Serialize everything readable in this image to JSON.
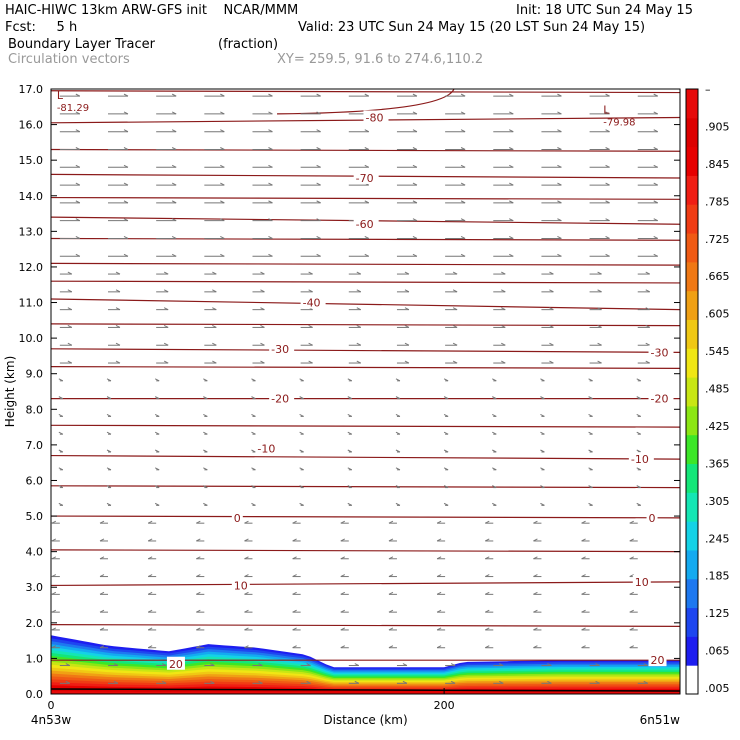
{
  "header": {
    "model_line": "HAIC-HIWC 13km ARW-GFS init    NCAR/MMM",
    "init_line": "Init: 18 UTC Sun 24 May 15",
    "fcst_line": "Fcst:     5 h",
    "valid_line": "Valid: 23 UTC Sun 24 May 15 (20 LST Sun 24 May 15)",
    "field_name": "Boundary Layer Tracer",
    "field_units": "(fraction)",
    "vector_name": "Circulation vectors",
    "xy_text": "XY= 259.5, 91.6 to 274.6,110.2"
  },
  "colors": {
    "contour": "#8b1a1a",
    "vector": "#777777",
    "colorbar": [
      "#ffffff",
      "#1e1ef0",
      "#1e46f0",
      "#1e78f0",
      "#14aaf0",
      "#14d2e6",
      "#14e6b4",
      "#14e678",
      "#3ce628",
      "#8ce614",
      "#c8e614",
      "#f0e614",
      "#f0c814",
      "#f0a014",
      "#f07814",
      "#f05a14",
      "#f03c14",
      "#f01e14",
      "#e60000",
      "#dc0000",
      "#e60a0a"
    ]
  },
  "chart_data": {
    "type": "cross-section",
    "xlabel": "Distance (km)",
    "ylabel": "Height (km)",
    "xlim": [
      0,
      320
    ],
    "ylim": [
      0,
      17
    ],
    "x_ticks": [
      "0",
      "200"
    ],
    "x_end_labels": [
      "4n53w",
      "6n51w"
    ],
    "y_ticks": [
      "0.0",
      "1.0",
      "2.0",
      "3.0",
      "4.0",
      "5.0",
      "6.0",
      "7.0",
      "8.0",
      "9.0",
      "10.0",
      "11.0",
      "12.0",
      "13.0",
      "14.0",
      "15.0",
      "16.0",
      "17.0"
    ],
    "colorbar_labels": [
      ".005",
      ".065",
      ".125",
      ".185",
      ".245",
      ".305",
      ".365",
      ".425",
      ".485",
      ".545",
      ".605",
      ".665",
      ".725",
      ".785",
      ".845",
      ".905",
      "–"
    ],
    "contour_labels": [
      {
        "text": "-80",
        "x": 160,
        "y": 16.2
      },
      {
        "text": "-70",
        "x": 155,
        "y": 14.5
      },
      {
        "text": "-60",
        "x": 155,
        "y": 13.2
      },
      {
        "text": "-40",
        "x": 128,
        "y": 11.0
      },
      {
        "text": "-30",
        "x": 112,
        "y": 9.7
      },
      {
        "text": "-30",
        "x": 305,
        "y": 9.6
      },
      {
        "text": "-20",
        "x": 112,
        "y": 8.3
      },
      {
        "text": "-20",
        "x": 305,
        "y": 8.3
      },
      {
        "text": "-10",
        "x": 105,
        "y": 6.9
      },
      {
        "text": "-10",
        "x": 295,
        "y": 6.6
      },
      {
        "text": "0",
        "x": 93,
        "y": 4.95
      },
      {
        "text": "0",
        "x": 304,
        "y": 4.95
      },
      {
        "text": "10",
        "x": 93,
        "y": 3.05
      },
      {
        "text": "10",
        "x": 297,
        "y": 3.15
      },
      {
        "text": "20",
        "x": 60,
        "y": 0.85
      },
      {
        "text": "20",
        "x": 305,
        "y": 0.95
      }
    ],
    "extrema": [
      {
        "symbol": "L",
        "value": "-81.29",
        "x": 5,
        "y": 16.6
      },
      {
        "symbol": "L",
        "value": "-79.98",
        "x": 283,
        "y": 16.2
      }
    ],
    "tracer_top_km": [
      {
        "x": 0,
        "y": 1.65
      },
      {
        "x": 30,
        "y": 1.35
      },
      {
        "x": 60,
        "y": 1.2
      },
      {
        "x": 80,
        "y": 1.4
      },
      {
        "x": 105,
        "y": 1.3
      },
      {
        "x": 130,
        "y": 1.1
      },
      {
        "x": 143,
        "y": 0.75
      },
      {
        "x": 200,
        "y": 0.75
      },
      {
        "x": 210,
        "y": 0.9
      },
      {
        "x": 260,
        "y": 0.95
      },
      {
        "x": 320,
        "y": 0.95
      }
    ],
    "contour_levels_km": [
      {
        "level": "-80",
        "y0": 16.05,
        "y1": 16.2
      },
      {
        "level": "-70",
        "y0": 14.6,
        "y1": 14.5
      },
      {
        "level": "-60",
        "y0": 13.4,
        "y1": 13.2
      },
      {
        "level": "-40",
        "y0": 11.1,
        "y1": 10.8
      },
      {
        "level": "-30",
        "y0": 9.7,
        "y1": 9.6
      },
      {
        "level": "-20",
        "y0": 8.3,
        "y1": 8.3
      },
      {
        "level": "-10",
        "y0": 6.7,
        "y1": 6.6
      },
      {
        "level": "0",
        "y0": 5.0,
        "y1": 4.95
      },
      {
        "level": "10",
        "y0": 3.05,
        "y1": 3.15
      },
      {
        "level": "20",
        "y0": 0.95,
        "y1": 0.95
      }
    ]
  }
}
